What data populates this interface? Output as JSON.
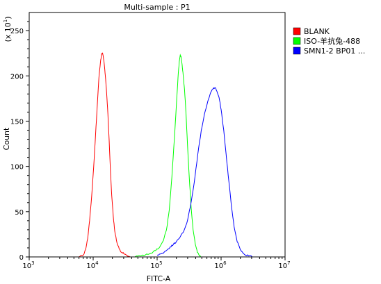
{
  "chart_data": {
    "type": "line",
    "title": "Multi-sample : P1",
    "xlabel": "FITC-A",
    "ylabel": "Count",
    "y_multiplier_label": "(x 10",
    "y_multiplier_exp": "1",
    "x_scale": "log",
    "xlim": [
      1000,
      10000000
    ],
    "ylim": [
      0,
      270
    ],
    "x_ticks": [
      {
        "value": 1000,
        "base": "10",
        "exp": "3"
      },
      {
        "value": 10000,
        "base": "10",
        "exp": "4"
      },
      {
        "value": 100000,
        "base": "10",
        "exp": "5"
      },
      {
        "value": 1000000,
        "base": "10",
        "exp": "6"
      },
      {
        "value": 10000000,
        "base": "10",
        "exp": "7"
      }
    ],
    "y_ticks": [
      {
        "value": 0,
        "label": "0"
      },
      {
        "value": 50,
        "label": "50"
      },
      {
        "value": 100,
        "label": "100"
      },
      {
        "value": 150,
        "label": "150"
      },
      {
        "value": 200,
        "label": "200"
      },
      {
        "value": 250,
        "label": "250"
      }
    ],
    "grid": false,
    "legend_position": "right",
    "series": [
      {
        "name": "BLANK",
        "color": "#ff0000",
        "points": [
          [
            6000,
            0
          ],
          [
            7000,
            2
          ],
          [
            7600,
            8
          ],
          [
            8200,
            20
          ],
          [
            8800,
            40
          ],
          [
            9500,
            68
          ],
          [
            10200,
            100
          ],
          [
            10900,
            135
          ],
          [
            11600,
            168
          ],
          [
            12300,
            198
          ],
          [
            13000,
            215
          ],
          [
            13500,
            224
          ],
          [
            14000,
            225
          ],
          [
            14400,
            221
          ],
          [
            14900,
            213
          ],
          [
            15500,
            200
          ],
          [
            16200,
            182
          ],
          [
            17000,
            158
          ],
          [
            17800,
            128
          ],
          [
            18600,
            96
          ],
          [
            19500,
            68
          ],
          [
            20600,
            45
          ],
          [
            21800,
            28
          ],
          [
            23500,
            16
          ],
          [
            25500,
            9
          ],
          [
            28000,
            5
          ],
          [
            31000,
            3
          ],
          [
            34000,
            1.5
          ],
          [
            38000,
            0
          ]
        ]
      },
      {
        "name": "ISO-羊抗兔-488",
        "color": "#00ff00",
        "points": [
          [
            45000,
            0
          ],
          [
            55000,
            1
          ],
          [
            65000,
            2
          ],
          [
            80000,
            4
          ],
          [
            95000,
            7
          ],
          [
            110000,
            11
          ],
          [
            125000,
            18
          ],
          [
            140000,
            30
          ],
          [
            155000,
            52
          ],
          [
            170000,
            88
          ],
          [
            185000,
            128
          ],
          [
            200000,
            168
          ],
          [
            212000,
            198
          ],
          [
            222000,
            216
          ],
          [
            230000,
            223
          ],
          [
            238000,
            220
          ],
          [
            246000,
            212
          ],
          [
            256000,
            200
          ],
          [
            268000,
            185
          ],
          [
            282000,
            160
          ],
          [
            298000,
            125
          ],
          [
            318000,
            88
          ],
          [
            340000,
            55
          ],
          [
            365000,
            30
          ],
          [
            395000,
            14
          ],
          [
            425000,
            5
          ],
          [
            460000,
            1
          ],
          [
            500000,
            0
          ]
        ]
      },
      {
        "name": "SMN1-2 BP01 ...",
        "color": "#0000ff",
        "points": [
          [
            100000,
            2
          ],
          [
            120000,
            4
          ],
          [
            140000,
            7
          ],
          [
            160000,
            11
          ],
          [
            180000,
            14
          ],
          [
            200000,
            17
          ],
          [
            225000,
            21
          ],
          [
            255000,
            27
          ],
          [
            290000,
            37
          ],
          [
            330000,
            55
          ],
          [
            380000,
            82
          ],
          [
            430000,
            112
          ],
          [
            490000,
            140
          ],
          [
            550000,
            158
          ],
          [
            620000,
            172
          ],
          [
            690000,
            182
          ],
          [
            750000,
            186
          ],
          [
            800000,
            187
          ],
          [
            860000,
            183
          ],
          [
            930000,
            176
          ],
          [
            1000000,
            163
          ],
          [
            1100000,
            140
          ],
          [
            1200000,
            113
          ],
          [
            1320000,
            84
          ],
          [
            1450000,
            56
          ],
          [
            1600000,
            33
          ],
          [
            1780000,
            17
          ],
          [
            2000000,
            8
          ],
          [
            2300000,
            3
          ],
          [
            2700000,
            1
          ],
          [
            3200000,
            0
          ]
        ]
      }
    ]
  }
}
